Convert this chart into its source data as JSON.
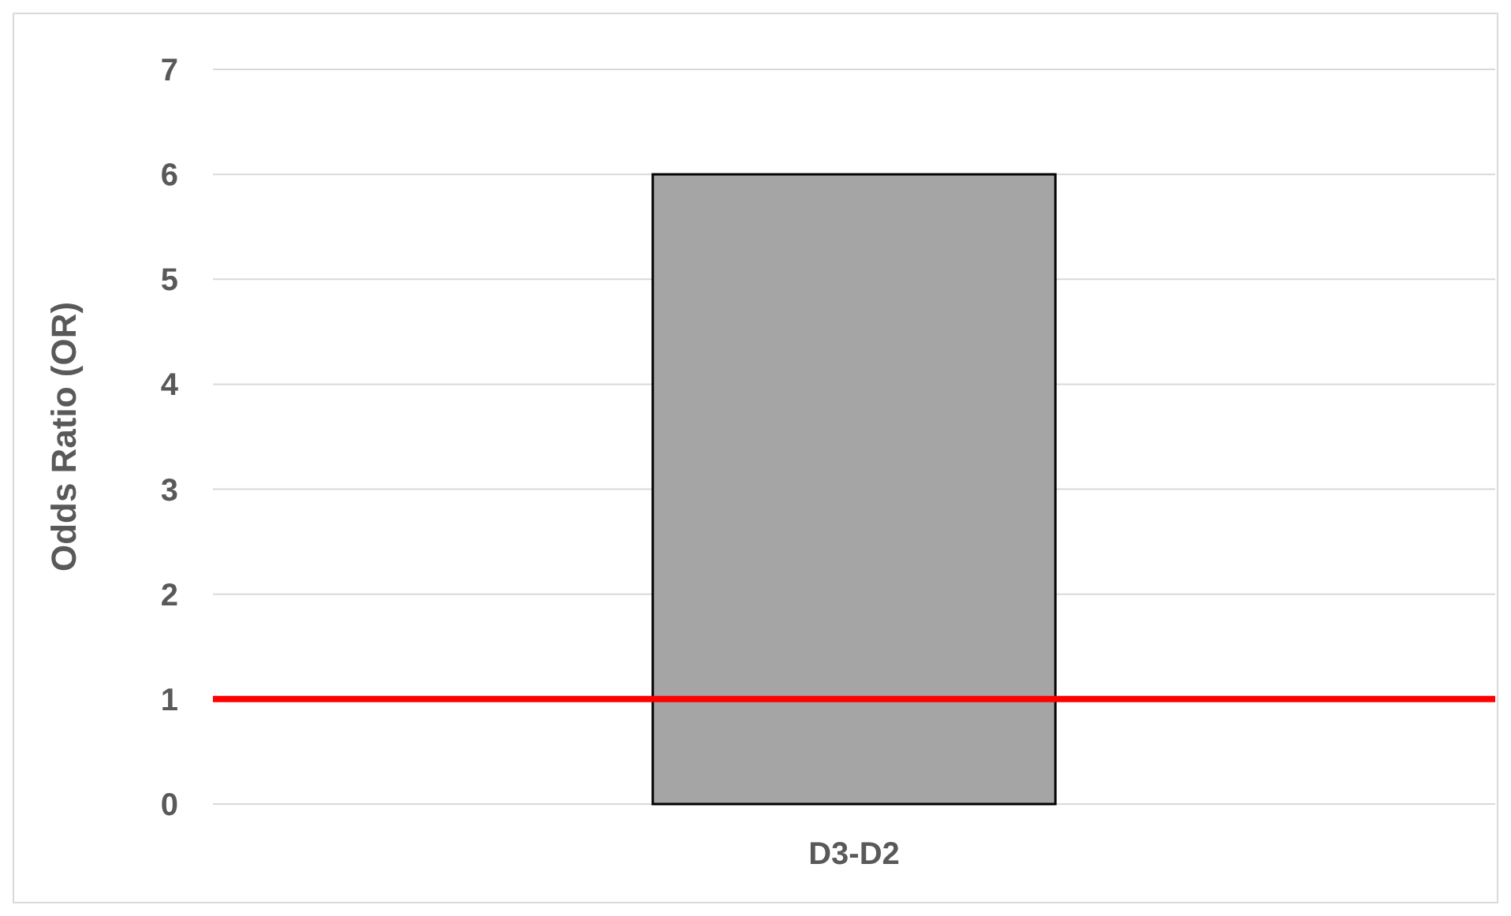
{
  "chart_data": {
    "type": "bar",
    "ylabel": "Odds Ratio (OR)",
    "categories": [
      "D3-D2"
    ],
    "values": [
      6
    ],
    "color": "#a5a5a5",
    "ylim": [
      0,
      7
    ],
    "yticks": [
      0,
      1,
      2,
      3,
      4,
      5,
      6,
      7
    ],
    "grid": "y",
    "ref_lines": [
      {
        "axis": "y",
        "value": 1,
        "color": "#ff0000"
      }
    ]
  }
}
